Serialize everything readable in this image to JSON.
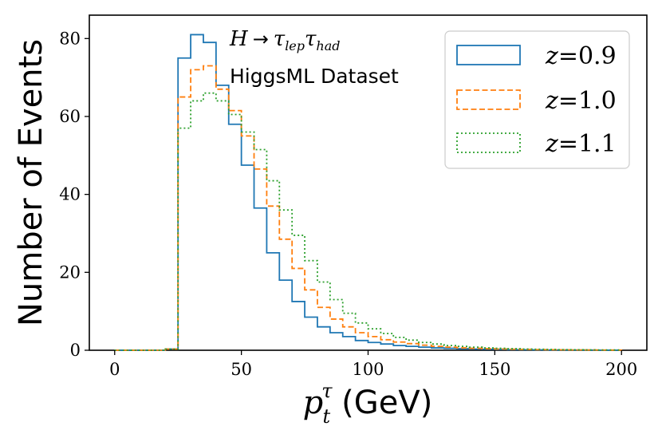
{
  "chart_data": {
    "type": "histogram-step",
    "xlabel_math": "p",
    "xlabel_sub": "t",
    "xlabel_sup": "τ",
    "xlabel_unit": "(GeV)",
    "ylabel": "Number of Events",
    "xlim": [
      -10,
      210
    ],
    "ylim": [
      0,
      86
    ],
    "xticks": [
      0,
      50,
      100,
      150,
      200
    ],
    "yticks": [
      0,
      20,
      40,
      60,
      80
    ],
    "bin_width": 5,
    "bin_edges": [
      0,
      5,
      10,
      15,
      20,
      25,
      30,
      35,
      40,
      45,
      50,
      55,
      60,
      65,
      70,
      75,
      80,
      85,
      90,
      95,
      100,
      105,
      110,
      115,
      120,
      125,
      130,
      135,
      140,
      145,
      150,
      155,
      160,
      165,
      170,
      175,
      180,
      185,
      190,
      195,
      200
    ],
    "annotation": {
      "math_H": "H",
      "arrow": "→",
      "tau": "τ",
      "sub1": "lep",
      "sub2": "had",
      "dataset": "HiggsML Dataset"
    },
    "legend_position": "top-right",
    "series": [
      {
        "name": "z=0.9",
        "label_var": "z",
        "label_val": "=0.9",
        "color": "#1f77b4",
        "style": "solid",
        "values": [
          0,
          0,
          0,
          0,
          0.3,
          75,
          81,
          79,
          68,
          58,
          47.5,
          36.5,
          25,
          18,
          12.5,
          8.5,
          6,
          4.5,
          3.5,
          2.5,
          2,
          1.6,
          1.2,
          1,
          0.8,
          0.6,
          0.5,
          0.4,
          0.3,
          0.25,
          0.2,
          0.15,
          0.12,
          0.1,
          0.08,
          0.06,
          0.05,
          0.04,
          0.03,
          0.02
        ]
      },
      {
        "name": "z=1.0",
        "label_var": "z",
        "label_val": "=1.0",
        "color": "#ff7f0e",
        "style": "dashed",
        "values": [
          0,
          0,
          0,
          0,
          0.3,
          65,
          72,
          73,
          67,
          61.5,
          55,
          46.5,
          37,
          28.5,
          21,
          15.5,
          11,
          8,
          6,
          4.5,
          3.5,
          2.7,
          2.1,
          1.7,
          1.3,
          1,
          0.8,
          0.6,
          0.5,
          0.4,
          0.3,
          0.25,
          0.2,
          0.15,
          0.12,
          0.1,
          0.08,
          0.06,
          0.05,
          0.04
        ]
      },
      {
        "name": "z=1.1",
        "label_var": "z",
        "label_val": "=1.1",
        "color": "#2ca02c",
        "style": "dotted",
        "values": [
          0,
          0,
          0,
          0,
          0.3,
          57,
          64,
          66,
          64,
          60.5,
          56,
          51.5,
          43.5,
          36,
          29.5,
          23,
          17.5,
          13,
          9.5,
          7,
          5.5,
          4.3,
          3.3,
          2.6,
          2,
          1.6,
          1.2,
          1,
          0.8,
          0.6,
          0.5,
          0.4,
          0.3,
          0.25,
          0.2,
          0.15,
          0.12,
          0.1,
          0.08,
          0.06
        ]
      }
    ]
  }
}
